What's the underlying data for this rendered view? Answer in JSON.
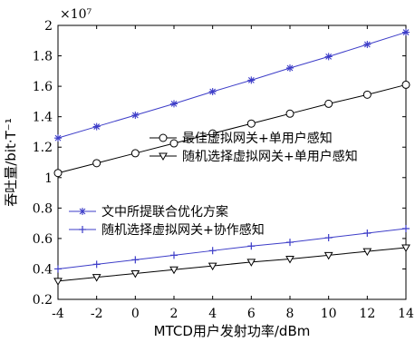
{
  "chart_data": {
    "type": "line",
    "xlabel": "MTCD用户发射功率/dBm",
    "ylabel": "吞吐量/bit·T⁻¹",
    "y_multiplier": "×10⁷",
    "x_ticks": [
      -4,
      -2,
      0,
      2,
      4,
      6,
      8,
      10,
      12,
      14
    ],
    "y_ticks": [
      0.2,
      0.4,
      0.6,
      0.8,
      1,
      1.2,
      1.4,
      1.6,
      1.8,
      2
    ],
    "xlim": [
      -4,
      14
    ],
    "ylim": [
      0.2,
      2
    ],
    "grid": false,
    "x": [
      -4,
      -2,
      0,
      2,
      4,
      6,
      8,
      10,
      12,
      14
    ],
    "series": [
      {
        "name": "最佳虚拟网关+单用户感知",
        "marker": "circle",
        "color": "#000000",
        "values": [
          1.03,
          1.095,
          1.16,
          1.225,
          1.29,
          1.355,
          1.42,
          1.485,
          1.545,
          1.61
        ]
      },
      {
        "name": "随机选择虚拟网关+单用户感知",
        "marker": "triangle-down",
        "color": "#000000",
        "values": [
          0.32,
          0.345,
          0.37,
          0.395,
          0.42,
          0.445,
          0.465,
          0.49,
          0.515,
          0.54
        ]
      },
      {
        "name": "文中所提联合优化方案",
        "marker": "asterisk",
        "color": "#3d3dc8",
        "values": [
          1.26,
          1.335,
          1.41,
          1.485,
          1.565,
          1.64,
          1.72,
          1.795,
          1.875,
          1.955
        ]
      },
      {
        "name": "随机选择虚拟网关+协作感知",
        "marker": "plus",
        "color": "#3d3dc8",
        "values": [
          0.4,
          0.43,
          0.46,
          0.49,
          0.52,
          0.55,
          0.575,
          0.605,
          0.635,
          0.665
        ]
      }
    ],
    "legend_groups": [
      {
        "placement": "center-right",
        "series": [
          0,
          1
        ]
      },
      {
        "placement": "center-left",
        "series": [
          2,
          3
        ]
      }
    ]
  }
}
